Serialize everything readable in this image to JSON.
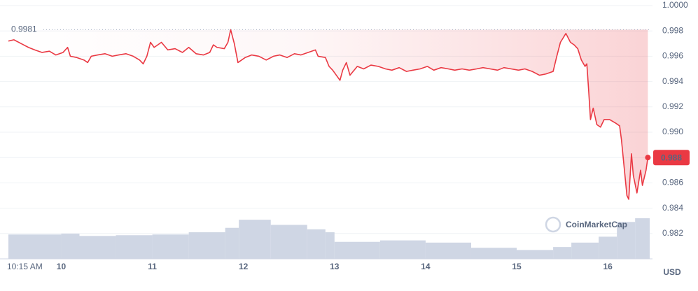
{
  "chart_data": {
    "type": "line",
    "x": [
      9.42,
      9.48,
      9.56,
      9.64,
      9.71,
      9.79,
      9.87,
      9.94,
      10.02,
      10.07,
      10.1,
      10.17,
      10.25,
      10.29,
      10.33,
      10.4,
      10.48,
      10.56,
      10.63,
      10.71,
      10.79,
      10.86,
      10.9,
      10.94,
      10.98,
      11.02,
      11.1,
      11.17,
      11.25,
      11.33,
      11.4,
      11.48,
      11.56,
      11.63,
      11.67,
      11.71,
      11.79,
      11.83,
      11.86,
      11.9,
      11.94,
      11.98,
      12.02,
      12.09,
      12.17,
      12.25,
      12.33,
      12.4,
      12.48,
      12.56,
      12.63,
      12.71,
      12.79,
      12.82,
      12.9,
      12.94,
      12.98,
      13.02,
      13.06,
      13.09,
      13.13,
      13.17,
      13.25,
      13.32,
      13.4,
      13.48,
      13.56,
      13.63,
      13.71,
      13.79,
      13.86,
      13.94,
      14.02,
      14.09,
      14.17,
      14.25,
      14.32,
      14.4,
      14.48,
      14.56,
      14.63,
      14.71,
      14.79,
      14.86,
      14.94,
      15.02,
      15.09,
      15.17,
      15.25,
      15.32,
      15.4,
      15.44,
      15.48,
      15.54,
      15.59,
      15.63,
      15.67,
      15.71,
      15.75,
      15.77,
      15.79,
      15.81,
      15.84,
      15.88,
      15.92,
      15.96,
      16.02,
      16.09,
      16.13,
      16.15,
      16.18,
      16.21,
      16.23,
      16.26,
      16.28,
      16.32,
      16.36,
      16.38,
      16.42,
      16.44
    ],
    "series": [
      {
        "color": "#ea3943",
        "values": [
          0.9972,
          0.9973,
          0.997,
          0.9967,
          0.9965,
          0.9963,
          0.9964,
          0.9961,
          0.9963,
          0.9967,
          0.996,
          0.9959,
          0.9957,
          0.9955,
          0.996,
          0.9961,
          0.9962,
          0.996,
          0.9961,
          0.9962,
          0.996,
          0.9957,
          0.9954,
          0.996,
          0.9971,
          0.9967,
          0.9971,
          0.9965,
          0.9966,
          0.9963,
          0.9967,
          0.9962,
          0.9961,
          0.9963,
          0.9969,
          0.9967,
          0.9966,
          0.9971,
          0.9981,
          0.997,
          0.9955,
          0.9957,
          0.9959,
          0.9961,
          0.996,
          0.9957,
          0.996,
          0.9961,
          0.9959,
          0.9962,
          0.9961,
          0.9963,
          0.9965,
          0.996,
          0.9959,
          0.9952,
          0.9949,
          0.9945,
          0.9941,
          0.9949,
          0.9955,
          0.9945,
          0.9952,
          0.995,
          0.9953,
          0.9952,
          0.995,
          0.9949,
          0.9951,
          0.9948,
          0.9949,
          0.995,
          0.9952,
          0.9949,
          0.9951,
          0.995,
          0.9949,
          0.995,
          0.9949,
          0.995,
          0.9951,
          0.995,
          0.9949,
          0.9951,
          0.995,
          0.9949,
          0.995,
          0.9948,
          0.9945,
          0.9946,
          0.9948,
          0.996,
          0.9971,
          0.9978,
          0.9971,
          0.9969,
          0.9966,
          0.9957,
          0.9952,
          0.9954,
          0.9933,
          0.991,
          0.9919,
          0.9906,
          0.9904,
          0.991,
          0.991,
          0.9907,
          0.9905,
          0.9894,
          0.9872,
          0.985,
          0.9847,
          0.9883,
          0.9866,
          0.9852,
          0.987,
          0.9858,
          0.987,
          0.988
        ]
      }
    ],
    "volume": {
      "color": "#cfd6e4",
      "x": [
        9.42,
        10.0,
        10.2,
        10.6,
        11.0,
        11.4,
        11.8,
        11.95,
        12.3,
        12.7,
        12.9,
        13.0,
        13.5,
        14.0,
        14.5,
        15.0,
        15.4,
        15.6,
        15.9,
        16.1,
        16.3
      ],
      "values": [
        33,
        34,
        31,
        32,
        33,
        36,
        42,
        53,
        46,
        40,
        36,
        23,
        25,
        22,
        15,
        12,
        16,
        22,
        30,
        50,
        55
      ]
    },
    "xlim": [
      9.42,
      16.46
    ],
    "ylim": [
      0.98,
      1
    ],
    "xticks": [
      {
        "value": 9.43,
        "label": "10:15 AM"
      },
      10,
      11,
      12,
      13,
      14,
      15,
      16
    ],
    "yticks": [
      {
        "value": 1,
        "label": "1.0000"
      },
      0.998,
      0.996,
      0.994,
      0.992,
      {
        "value": 0.99,
        "label": "0.990"
      },
      0.988,
      0.986,
      0.984,
      0.982
    ],
    "grid": true,
    "max_price": 0.9981,
    "last_price": 0.988,
    "unit": "USD",
    "watermark": "CoinMarketCap"
  }
}
